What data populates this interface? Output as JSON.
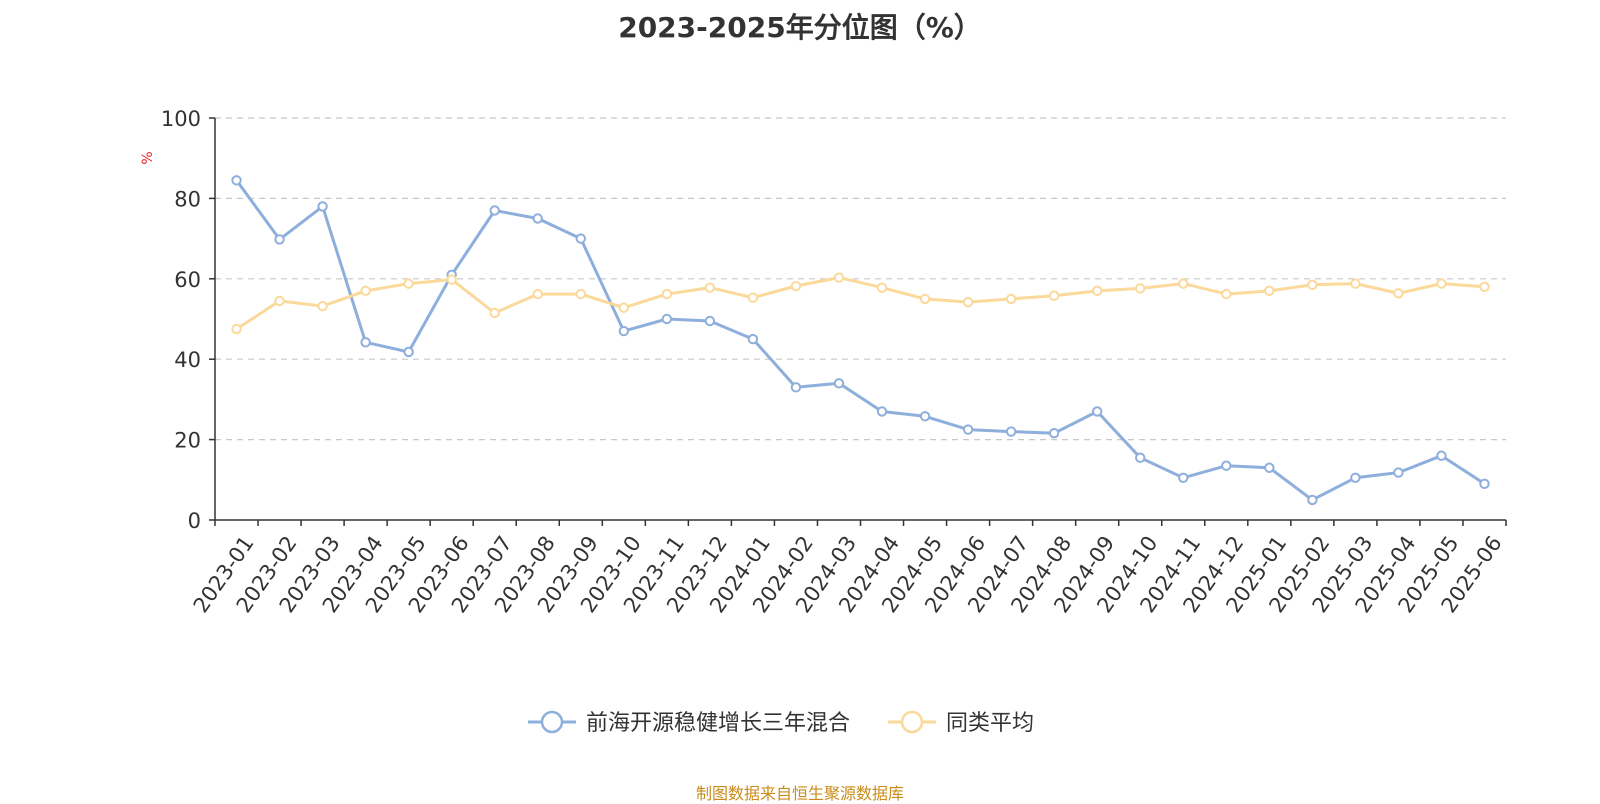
{
  "title": "2023-2025年分位图（%）",
  "source": "制图数据来自恒生聚源数据库",
  "colors": {
    "series1": "#8eaedb",
    "series2": "#fbd99a",
    "grid": "#c8c8c8",
    "axis": "#333333",
    "unit": "#e8262a",
    "source": "#c98b1c"
  },
  "chart_data": {
    "type": "line",
    "title": "2023-2025年分位图（%）",
    "ylabel": "%",
    "ylim": [
      0,
      100
    ],
    "yticks": [
      0,
      20,
      40,
      60,
      80,
      100
    ],
    "grid": true,
    "grid_style": "dashed",
    "legend_position": "bottom",
    "categories": [
      "2023-01",
      "2023-02",
      "2023-03",
      "2023-04",
      "2023-05",
      "2023-06",
      "2023-07",
      "2023-08",
      "2023-09",
      "2023-10",
      "2023-11",
      "2023-12",
      "2024-01",
      "2024-02",
      "2024-03",
      "2024-04",
      "2024-05",
      "2024-06",
      "2024-07",
      "2024-08",
      "2024-09",
      "2024-10",
      "2024-11",
      "2024-12",
      "2025-01",
      "2025-02",
      "2025-03",
      "2025-04",
      "2025-05",
      "2025-06"
    ],
    "series": [
      {
        "name": "前海开源稳健增长三年混合",
        "color": "#8eaedb",
        "values": [
          84.5,
          69.8,
          78.0,
          44.2,
          41.8,
          61.0,
          77.0,
          75.0,
          70.0,
          47.0,
          50.0,
          49.5,
          45.0,
          33.0,
          34.0,
          27.0,
          25.8,
          22.5,
          22.0,
          21.6,
          27.0,
          15.5,
          10.5,
          13.5,
          13.0,
          5.0,
          10.5,
          11.8,
          16.0,
          9.0
        ]
      },
      {
        "name": "同类平均",
        "color": "#fbd99a",
        "values": [
          47.5,
          54.5,
          53.2,
          57.0,
          58.8,
          59.8,
          51.5,
          56.2,
          56.2,
          52.8,
          56.2,
          57.8,
          55.3,
          58.2,
          60.3,
          57.8,
          55.0,
          54.2,
          55.0,
          55.8,
          57.0,
          57.6,
          58.8,
          56.2,
          57.0,
          58.5,
          58.8,
          56.4,
          58.8,
          58.0
        ]
      }
    ]
  }
}
